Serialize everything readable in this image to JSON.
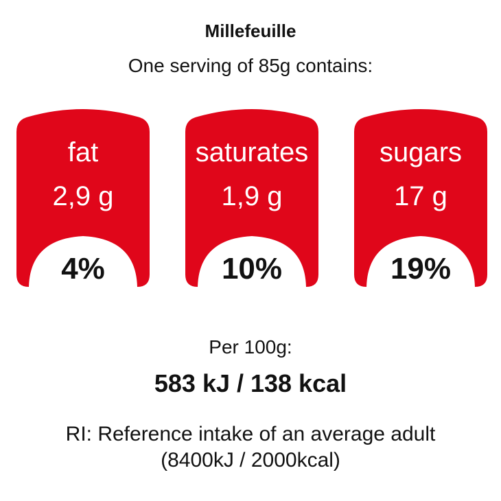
{
  "product": {
    "name": "Millefeuille",
    "serving_text": "One serving of 85g contains:"
  },
  "nutrients": [
    {
      "label": "fat",
      "amount": "2,9 g",
      "percent": "4%"
    },
    {
      "label": "saturates",
      "amount": "1,9 g",
      "percent": "10%"
    },
    {
      "label": "sugars",
      "amount": "17 g",
      "percent": "19%"
    }
  ],
  "energy": {
    "per_label": "Per 100g:",
    "value": "583 kJ / 138 kcal"
  },
  "reference": {
    "line1": "RI: Reference intake of an average adult",
    "line2": "(8400kJ / 2000kcal)"
  },
  "colors": {
    "badge_red": "#e0061a",
    "text": "#111111",
    "background": "#ffffff"
  }
}
